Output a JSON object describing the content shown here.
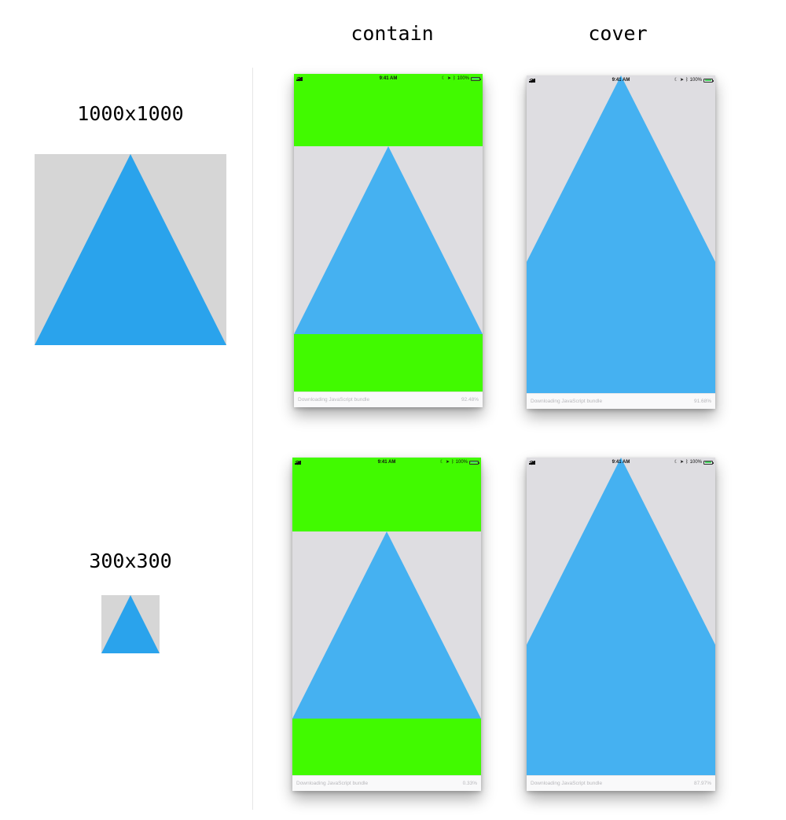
{
  "columns": [
    {
      "label": "contain"
    },
    {
      "label": "cover"
    }
  ],
  "rows": [
    {
      "label": "1000x1000"
    },
    {
      "label": "300x300"
    }
  ],
  "colors": {
    "triangle": "#2aa3ec",
    "triangle_screen": "#45b1f1",
    "sample_background": "#d6d6d6",
    "letterbox_band": "#41fa00",
    "screen_background": "#dedde1"
  },
  "status_bar": {
    "time": "9:41 AM",
    "battery": "100%"
  },
  "loading_text": "Downloading JavaScript bundle",
  "phones": [
    {
      "row": "1000x1000",
      "mode": "contain",
      "percent": "92.48%"
    },
    {
      "row": "1000x1000",
      "mode": "cover",
      "percent": "91.68%"
    },
    {
      "row": "300x300",
      "mode": "contain",
      "percent": "0.33%"
    },
    {
      "row": "300x300",
      "mode": "cover",
      "percent": "87.97%"
    }
  ]
}
